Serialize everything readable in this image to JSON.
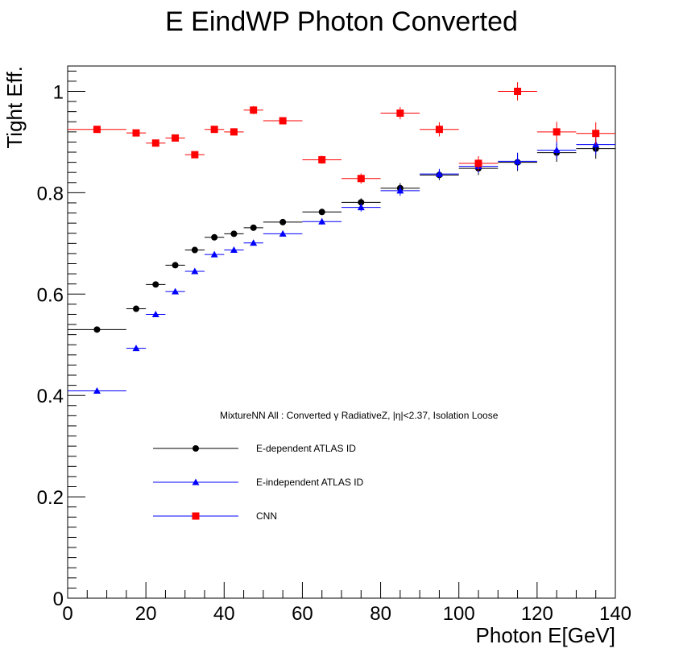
{
  "chart_data": {
    "type": "scatter",
    "title": "E EindWP Photon Converted",
    "xlabel": "Photon E[GeV]",
    "ylabel": "Tight Eff.",
    "xlim": [
      0,
      140
    ],
    "ylim": [
      0,
      1.05
    ],
    "x_ticks": [
      0,
      20,
      40,
      60,
      80,
      100,
      120,
      140
    ],
    "x_tick_labels": [
      "0",
      "20",
      "40",
      "60",
      "80",
      "100",
      "120",
      "140"
    ],
    "y_ticks": [
      0,
      0.2,
      0.4,
      0.6,
      0.8,
      1
    ],
    "y_tick_labels": [
      "0",
      "0.2",
      "0.4",
      "0.6",
      "0.8",
      "1"
    ],
    "grid": false,
    "legend_header": "MixtureNN All : Converted γ RadiativeZ, |η|<2.37, Isolation Loose",
    "legend_position": "lower-center",
    "series": [
      {
        "name": "E-dependent ATLAS ID",
        "color": "#000000",
        "marker": "circle",
        "x": [
          7.5,
          17.5,
          22.5,
          27.5,
          32.5,
          37.5,
          42.5,
          47.5,
          55,
          65,
          75,
          85,
          95,
          105,
          115,
          125,
          135
        ],
        "xerr": [
          7.5,
          2.5,
          2.5,
          2.5,
          2.5,
          2.5,
          2.5,
          2.5,
          5,
          5,
          5,
          5,
          5,
          5,
          5,
          5,
          5
        ],
        "y": [
          0.53,
          0.571,
          0.619,
          0.657,
          0.687,
          0.712,
          0.719,
          0.731,
          0.742,
          0.762,
          0.781,
          0.809,
          0.835,
          0.848,
          0.86,
          0.879,
          0.887
        ],
        "yerr": [
          0.003,
          0.004,
          0.004,
          0.004,
          0.004,
          0.004,
          0.005,
          0.005,
          0.004,
          0.006,
          0.008,
          0.01,
          0.01,
          0.013,
          0.017,
          0.018,
          0.02
        ]
      },
      {
        "name": "E-independent ATLAS ID",
        "color": "#0000ff",
        "marker": "triangle",
        "x": [
          7.5,
          17.5,
          22.5,
          27.5,
          32.5,
          37.5,
          42.5,
          47.5,
          55,
          65,
          75,
          85,
          95,
          105,
          115,
          125,
          135
        ],
        "xerr": [
          7.5,
          2.5,
          2.5,
          2.5,
          2.5,
          2.5,
          2.5,
          2.5,
          5,
          5,
          5,
          5,
          5,
          5,
          5,
          5,
          5
        ],
        "y": [
          0.409,
          0.493,
          0.56,
          0.605,
          0.645,
          0.678,
          0.687,
          0.701,
          0.719,
          0.743,
          0.771,
          0.804,
          0.837,
          0.852,
          0.862,
          0.884,
          0.895
        ],
        "yerr": [
          0.003,
          0.004,
          0.004,
          0.004,
          0.004,
          0.004,
          0.005,
          0.005,
          0.004,
          0.006,
          0.008,
          0.01,
          0.01,
          0.013,
          0.017,
          0.018,
          0.02
        ]
      },
      {
        "name": "CNN",
        "color": "#ff0000",
        "marker": "square",
        "x": [
          7.5,
          17.5,
          22.5,
          27.5,
          32.5,
          37.5,
          42.5,
          47.5,
          55,
          65,
          75,
          85,
          95,
          105,
          115,
          125,
          135
        ],
        "xerr": [
          7.5,
          2.5,
          2.5,
          2.5,
          2.5,
          2.5,
          2.5,
          2.5,
          5,
          5,
          5,
          5,
          5,
          5,
          5,
          5,
          5
        ],
        "y": [
          0.925,
          0.918,
          0.898,
          0.908,
          0.875,
          0.925,
          0.92,
          0.963,
          0.942,
          0.865,
          0.828,
          0.957,
          0.925,
          0.858,
          1.0,
          0.92,
          0.917
        ],
        "yerr": [
          0.004,
          0.005,
          0.005,
          0.006,
          0.006,
          0.006,
          0.007,
          0.008,
          0.006,
          0.008,
          0.01,
          0.012,
          0.014,
          0.014,
          0.018,
          0.02,
          0.022
        ]
      }
    ]
  }
}
